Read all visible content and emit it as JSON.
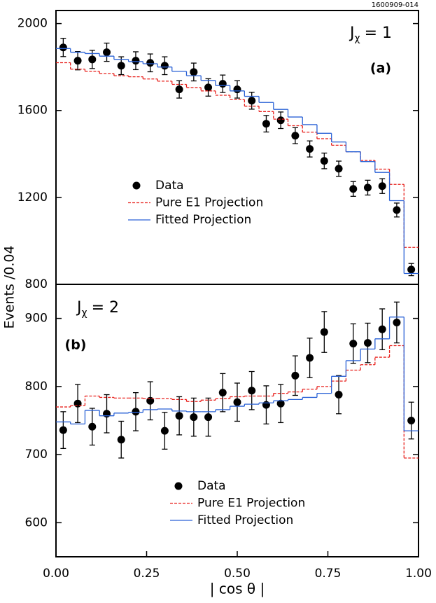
{
  "figure_id": "1600909-014",
  "y_label": "Events /0.04",
  "x_label": "| cos θ |",
  "chart_data": [
    {
      "type": "step_fit",
      "j_symbol": "J",
      "j_sub": "χ",
      "j_value": "= 1",
      "panel_label": "(a)",
      "xlim": [
        0,
        1
      ],
      "ylim": [
        800,
        2060
      ],
      "yticks": [
        800,
        1200,
        1600,
        2000
      ],
      "x": [
        0.02,
        0.06,
        0.1,
        0.14,
        0.18,
        0.22,
        0.26,
        0.3,
        0.34,
        0.38,
        0.42,
        0.46,
        0.5,
        0.54,
        0.58,
        0.62,
        0.66,
        0.7,
        0.74,
        0.78,
        0.82,
        0.86,
        0.9,
        0.94,
        0.98
      ],
      "bins": [
        0,
        0.04,
        0.08,
        0.12,
        0.16,
        0.2,
        0.24,
        0.28,
        0.32,
        0.36,
        0.4,
        0.44,
        0.48,
        0.52,
        0.56,
        0.6,
        0.64,
        0.68,
        0.72,
        0.76,
        0.8,
        0.84,
        0.88,
        0.92,
        0.96,
        1.0
      ],
      "series": [
        {
          "name": "Data",
          "kind": "points",
          "color": "#000000",
          "values": [
            1890,
            1829,
            1835,
            1868,
            1806,
            1829,
            1819,
            1806,
            1697,
            1777,
            1706,
            1723,
            1697,
            1645,
            1539,
            1555,
            1484,
            1423,
            1368,
            1332,
            1239,
            1245,
            1252,
            1142,
            868
          ],
          "errors": [
            42,
            42,
            42,
            42,
            41,
            41,
            41,
            41,
            40,
            41,
            40,
            40,
            40,
            39,
            38,
            38,
            37,
            37,
            36,
            35,
            34,
            34,
            34,
            32,
            28
          ]
        },
        {
          "name": "Pure E1 Projection",
          "kind": "step",
          "dashed": true,
          "color": "#e8201c",
          "values": [
            1820,
            1790,
            1780,
            1770,
            1760,
            1755,
            1745,
            1735,
            1720,
            1705,
            1690,
            1670,
            1650,
            1620,
            1595,
            1560,
            1530,
            1500,
            1470,
            1440,
            1410,
            1370,
            1330,
            1260,
            970
          ]
        },
        {
          "name": "Fitted Projection",
          "kind": "step",
          "dashed": false,
          "color": "#2a62d6",
          "values": [
            1885,
            1868,
            1862,
            1850,
            1835,
            1825,
            1815,
            1800,
            1780,
            1760,
            1738,
            1715,
            1690,
            1665,
            1637,
            1605,
            1570,
            1535,
            1495,
            1455,
            1410,
            1365,
            1315,
            1185,
            850
          ]
        }
      ]
    },
    {
      "type": "step_fit",
      "j_symbol": "J",
      "j_sub": "χ",
      "j_value": "= 2",
      "panel_label": "(b)",
      "xlim": [
        0,
        1
      ],
      "ylim": [
        550,
        950
      ],
      "yticks": [
        600,
        700,
        800,
        900
      ],
      "xticks": [
        {
          "value": 0,
          "label": "0.00"
        },
        {
          "value": 0.25,
          "label": "0.25"
        },
        {
          "value": 0.5,
          "label": "0.50"
        },
        {
          "value": 0.75,
          "label": "0.75"
        },
        {
          "value": 1,
          "label": "1.00"
        }
      ],
      "x": [
        0.02,
        0.06,
        0.1,
        0.14,
        0.18,
        0.22,
        0.26,
        0.3,
        0.34,
        0.38,
        0.42,
        0.46,
        0.5,
        0.54,
        0.58,
        0.62,
        0.66,
        0.7,
        0.74,
        0.78,
        0.82,
        0.86,
        0.9,
        0.94,
        0.98
      ],
      "bins": [
        0,
        0.04,
        0.08,
        0.12,
        0.16,
        0.2,
        0.24,
        0.28,
        0.32,
        0.36,
        0.4,
        0.44,
        0.48,
        0.52,
        0.56,
        0.6,
        0.64,
        0.68,
        0.72,
        0.76,
        0.8,
        0.84,
        0.88,
        0.92,
        0.96,
        1.0
      ],
      "series": [
        {
          "name": "Data",
          "kind": "points",
          "color": "#000000",
          "values": [
            736,
            775,
            741,
            760,
            722,
            763,
            779,
            735,
            757,
            755,
            755,
            791,
            777,
            794,
            773,
            775,
            816,
            842,
            880,
            788,
            863,
            864,
            884,
            894,
            750
          ],
          "errors": [
            27,
            28,
            27,
            28,
            27,
            28,
            28,
            27,
            28,
            28,
            28,
            28,
            28,
            28,
            28,
            28,
            29,
            29,
            30,
            28,
            29,
            29,
            30,
            30,
            27
          ]
        },
        {
          "name": "Pure E1 Projection",
          "kind": "step",
          "dashed": true,
          "color": "#e8201c",
          "values": [
            770,
            772,
            786,
            784,
            783,
            783,
            782,
            782,
            781,
            778,
            780,
            782,
            785,
            786,
            786,
            790,
            792,
            796,
            800,
            808,
            824,
            832,
            843,
            860,
            695
          ]
        },
        {
          "name": "Fitted Projection",
          "kind": "step",
          "dashed": false,
          "color": "#2a62d6",
          "values": [
            748,
            745,
            765,
            757,
            761,
            762,
            766,
            767,
            764,
            763,
            763,
            766,
            771,
            774,
            776,
            779,
            781,
            784,
            790,
            815,
            838,
            855,
            870,
            902,
            735
          ]
        }
      ]
    }
  ]
}
